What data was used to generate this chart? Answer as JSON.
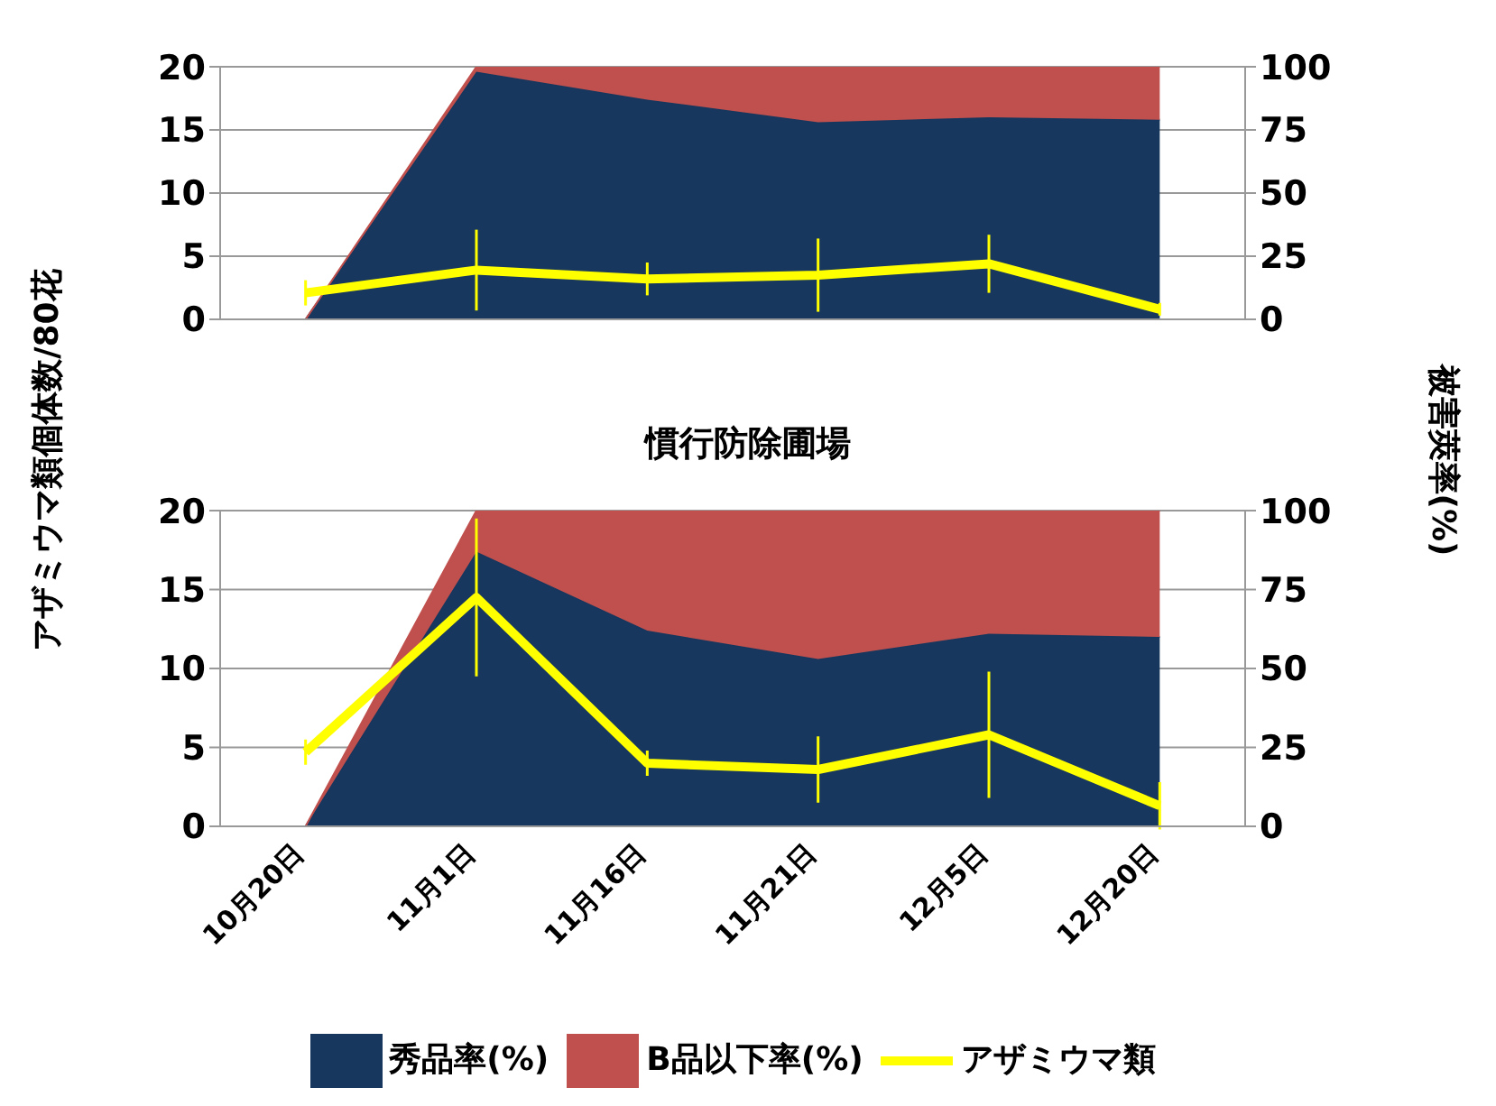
{
  "chart_data": [
    {
      "type": "area",
      "stacked": true,
      "ylabel": "アザミウマ類個体数/80花",
      "y2label": "被害莢率(%)",
      "categories": [
        null,
        null,
        null,
        null,
        null,
        null
      ],
      "tick_labels": "y",
      "grid": "y",
      "ylim": [
        0,
        20
      ],
      "yticks": [
        0,
        5,
        10,
        15,
        20
      ],
      "y2lim": [
        0,
        100
      ],
      "y2ticks": [
        0,
        25,
        50,
        75,
        100
      ],
      "series": [
        {
          "axis": "y2",
          "color": "#17375e",
          "values": [
            0,
            98,
            87,
            78,
            80,
            79
          ]
        },
        {
          "axis": "y2",
          "color": "#c0504d",
          "values": [
            0,
            2,
            13,
            22,
            20,
            21
          ]
        },
        {
          "type": "line",
          "axis": "y",
          "color": "#ffff00",
          "values": [
            2.1,
            3.9,
            3.2,
            3.5,
            4.4,
            0.8
          ],
          "errors": [
            1.0,
            3.2,
            1.3,
            2.9,
            2.3,
            0.5
          ]
        }
      ]
    },
    {
      "type": "area",
      "stacked": true,
      "title": "慣行防除圃場",
      "categories": [
        "10月20日",
        "11月1日",
        "11月16日",
        "11月21日",
        "12月5日",
        "12月20日"
      ],
      "grid": "y",
      "legend": "bottom",
      "ylim": [
        0,
        20
      ],
      "yticks": [
        0,
        5,
        10,
        15,
        20
      ],
      "y2lim": [
        0,
        100
      ],
      "y2ticks": [
        0,
        25,
        50,
        75,
        100
      ],
      "series": [
        {
          "name": "秀品率(%)",
          "axis": "y2",
          "color": "#17375e",
          "values": [
            0,
            87,
            62,
            53,
            61,
            60
          ]
        },
        {
          "name": "B品以下率(%)",
          "axis": "y2",
          "color": "#c0504d",
          "values": [
            0,
            13,
            38,
            47,
            39,
            40
          ]
        },
        {
          "name": "アザミウマ類",
          "type": "line",
          "axis": "y",
          "color": "#ffff00",
          "values": [
            4.7,
            14.5,
            4.0,
            3.6,
            5.8,
            1.3
          ],
          "errors": [
            0.8,
            5.0,
            0.8,
            2.1,
            4.0,
            1.5
          ]
        }
      ]
    }
  ]
}
